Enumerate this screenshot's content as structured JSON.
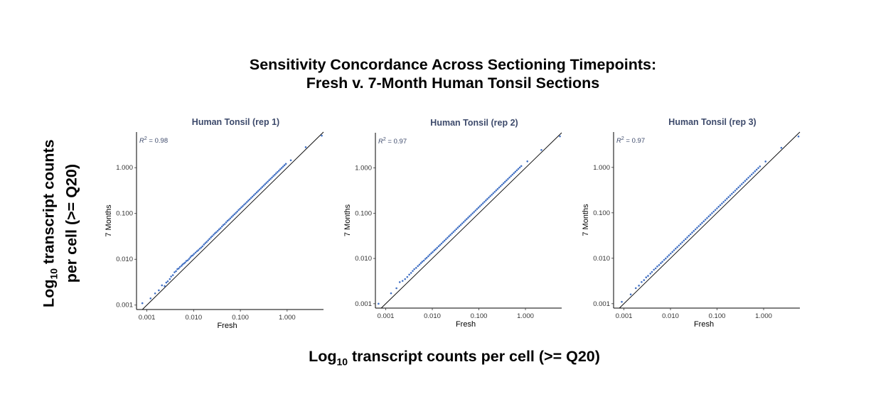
{
  "title_line1": "Sensitivity Concordance Across Sectioning Timepoints:",
  "title_line2": "Fresh v. 7-Month Human Tonsil Sections",
  "y_title_main": "Log",
  "y_title_sub": "10",
  "y_title_rest": " transcript counts",
  "y_title_line2": "per cell (>= Q20)",
  "x_title_main": "Log",
  "x_title_sub": "10",
  "x_title_rest": " transcript counts per cell (>= Q20)",
  "colors": {
    "points": "#4472C4",
    "reference_line": "#000000",
    "panel_title": "#3d4a6b"
  },
  "chart_data": [
    {
      "type": "scatter",
      "title": "Human Tonsil (rep 1)",
      "xlabel": "Fresh",
      "ylabel": "7 Months",
      "scale": "log10",
      "xlim": [
        0.0006,
        6.0
      ],
      "ylim": [
        0.0008,
        6.0
      ],
      "xticks": [
        "0.001",
        "0.010",
        "0.100",
        "1.000"
      ],
      "yticks": [
        "0.001",
        "0.010",
        "0.100",
        "1.000"
      ],
      "annotation": {
        "label": "R",
        "superscript": "2",
        "value": " = 0.98"
      },
      "reference_line": "y = x",
      "grid": false,
      "points": [
        [
          0.0008,
          0.0011
        ],
        [
          0.0012,
          0.0014
        ],
        [
          0.0015,
          0.0018
        ],
        [
          0.0018,
          0.0021
        ],
        [
          0.0021,
          0.0027
        ],
        [
          0.0024,
          0.0026
        ],
        [
          0.0026,
          0.0031
        ],
        [
          0.0028,
          0.0033
        ],
        [
          0.0031,
          0.0037
        ],
        [
          0.0033,
          0.0042
        ],
        [
          0.0036,
          0.0045
        ],
        [
          0.0039,
          0.0052
        ],
        [
          0.0042,
          0.0055
        ],
        [
          0.0045,
          0.0061
        ],
        [
          0.0048,
          0.0063
        ],
        [
          0.0051,
          0.0068
        ],
        [
          0.0055,
          0.0072
        ],
        [
          0.0058,
          0.0077
        ],
        [
          0.0062,
          0.0081
        ],
        [
          0.0066,
          0.0085
        ],
        [
          0.007,
          0.0092
        ],
        [
          0.0075,
          0.0095
        ],
        [
          0.008,
          0.0102
        ],
        [
          0.0085,
          0.011
        ],
        [
          0.009,
          0.0118
        ],
        [
          0.0096,
          0.0122
        ],
        [
          0.0102,
          0.0131
        ],
        [
          0.011,
          0.014
        ],
        [
          0.0118,
          0.015
        ],
        [
          0.0126,
          0.0158
        ],
        [
          0.0135,
          0.017
        ],
        [
          0.0145,
          0.018
        ],
        [
          0.0155,
          0.0192
        ],
        [
          0.0166,
          0.021
        ],
        [
          0.0178,
          0.0225
        ],
        [
          0.019,
          0.024
        ],
        [
          0.0204,
          0.0258
        ],
        [
          0.0218,
          0.0278
        ],
        [
          0.0234,
          0.03
        ],
        [
          0.025,
          0.032
        ],
        [
          0.0268,
          0.0345
        ],
        [
          0.0287,
          0.037
        ],
        [
          0.0307,
          0.0392
        ],
        [
          0.0329,
          0.042
        ],
        [
          0.0352,
          0.045
        ],
        [
          0.0377,
          0.048
        ],
        [
          0.0404,
          0.052
        ],
        [
          0.0432,
          0.056
        ],
        [
          0.0463,
          0.059
        ],
        [
          0.0496,
          0.064
        ],
        [
          0.0531,
          0.069
        ],
        [
          0.0568,
          0.073
        ],
        [
          0.0608,
          0.078
        ],
        [
          0.0651,
          0.084
        ],
        [
          0.0697,
          0.09
        ],
        [
          0.0747,
          0.096
        ],
        [
          0.08,
          0.103
        ],
        [
          0.0856,
          0.11
        ],
        [
          0.0917,
          0.119
        ],
        [
          0.0982,
          0.127
        ],
        [
          0.1051,
          0.136
        ],
        [
          0.1126,
          0.145
        ],
        [
          0.1206,
          0.156
        ],
        [
          0.1291,
          0.166
        ],
        [
          0.1383,
          0.178
        ],
        [
          0.1481,
          0.191
        ],
        [
          0.1586,
          0.204
        ],
        [
          0.1698,
          0.219
        ],
        [
          0.1818,
          0.234
        ],
        [
          0.1947,
          0.251
        ],
        [
          0.2085,
          0.269
        ],
        [
          0.2233,
          0.288
        ],
        [
          0.2391,
          0.308
        ],
        [
          0.256,
          0.33
        ],
        [
          0.2742,
          0.353
        ],
        [
          0.2936,
          0.378
        ],
        [
          0.3144,
          0.405
        ],
        [
          0.3367,
          0.434
        ],
        [
          0.3606,
          0.465
        ],
        [
          0.3861,
          0.498
        ],
        [
          0.4135,
          0.533
        ],
        [
          0.4428,
          0.571
        ],
        [
          0.4742,
          0.611
        ],
        [
          0.5078,
          0.655
        ],
        [
          0.5438,
          0.701
        ],
        [
          0.5823,
          0.751
        ],
        [
          0.6236,
          0.804
        ],
        [
          0.6678,
          0.861
        ],
        [
          0.7152,
          0.922
        ],
        [
          0.7659,
          0.988
        ],
        [
          0.8202,
          1.058
        ],
        [
          0.8783,
          1.133
        ],
        [
          0.9406,
          1.213
        ],
        [
          1.2,
          1.45
        ],
        [
          2.5,
          2.8
        ],
        [
          5.5,
          5.0
        ]
      ]
    },
    {
      "type": "scatter",
      "title": "Human Tonsil (rep 2)",
      "xlabel": "Fresh",
      "ylabel": "7 Months",
      "scale": "log10",
      "xlim": [
        0.0006,
        6.0
      ],
      "ylim": [
        0.0008,
        6.0
      ],
      "xticks": [
        "0.001",
        "0.010",
        "0.100",
        "1.000"
      ],
      "yticks": [
        "0.001",
        "0.010",
        "0.100",
        "1.000"
      ],
      "annotation": {
        "label": "R",
        "superscript": "2",
        "value": " = 0.97"
      },
      "reference_line": "y = x",
      "grid": false,
      "points": [
        [
          0.0007,
          0.001
        ],
        [
          0.0013,
          0.0017
        ],
        [
          0.0017,
          0.0022
        ],
        [
          0.002,
          0.003
        ],
        [
          0.0023,
          0.0032
        ],
        [
          0.0026,
          0.0035
        ],
        [
          0.0029,
          0.0039
        ],
        [
          0.0032,
          0.0044
        ],
        [
          0.0035,
          0.0048
        ],
        [
          0.0038,
          0.0053
        ],
        [
          0.0041,
          0.0058
        ],
        [
          0.0045,
          0.0062
        ],
        [
          0.0049,
          0.0068
        ],
        [
          0.0053,
          0.0073
        ],
        [
          0.0057,
          0.0079
        ],
        [
          0.0061,
          0.0085
        ],
        [
          0.0066,
          0.009
        ],
        [
          0.0071,
          0.0098
        ],
        [
          0.0076,
          0.0104
        ],
        [
          0.0082,
          0.0112
        ],
        [
          0.0088,
          0.0121
        ],
        [
          0.0095,
          0.013
        ],
        [
          0.0102,
          0.0139
        ],
        [
          0.011,
          0.015
        ],
        [
          0.0118,
          0.016
        ],
        [
          0.0127,
          0.0172
        ],
        [
          0.0137,
          0.0186
        ],
        [
          0.0147,
          0.0199
        ],
        [
          0.0158,
          0.0214
        ],
        [
          0.017,
          0.0231
        ],
        [
          0.0183,
          0.0248
        ],
        [
          0.0197,
          0.0267
        ],
        [
          0.0212,
          0.0287
        ],
        [
          0.0228,
          0.0309
        ],
        [
          0.0245,
          0.0332
        ],
        [
          0.0264,
          0.0358
        ],
        [
          0.0284,
          0.0385
        ],
        [
          0.0305,
          0.0414
        ],
        [
          0.0328,
          0.0445
        ],
        [
          0.0353,
          0.0479
        ],
        [
          0.038,
          0.0515
        ],
        [
          0.0409,
          0.0554
        ],
        [
          0.044,
          0.0596
        ],
        [
          0.0473,
          0.0641
        ],
        [
          0.0509,
          0.069
        ],
        [
          0.0547,
          0.0742
        ],
        [
          0.0589,
          0.0798
        ],
        [
          0.0633,
          0.0858
        ],
        [
          0.0681,
          0.0923
        ],
        [
          0.0733,
          0.0993
        ],
        [
          0.0788,
          0.1068
        ],
        [
          0.0848,
          0.1149
        ],
        [
          0.0912,
          0.1236
        ],
        [
          0.0981,
          0.133
        ],
        [
          0.1055,
          0.143
        ],
        [
          0.1135,
          0.1538
        ],
        [
          0.1221,
          0.1655
        ],
        [
          0.1313,
          0.178
        ],
        [
          0.1413,
          0.1915
        ],
        [
          0.152,
          0.206
        ],
        [
          0.1635,
          0.2216
        ],
        [
          0.1759,
          0.2384
        ],
        [
          0.1892,
          0.2564
        ],
        [
          0.2035,
          0.2758
        ],
        [
          0.2189,
          0.2967
        ],
        [
          0.2355,
          0.3192
        ],
        [
          0.2533,
          0.3433
        ],
        [
          0.2725,
          0.3693
        ],
        [
          0.2931,
          0.3973
        ],
        [
          0.3153,
          0.4274
        ],
        [
          0.3392,
          0.4597
        ],
        [
          0.3649,
          0.4946
        ],
        [
          0.3925,
          0.532
        ],
        [
          0.4222,
          0.5723
        ],
        [
          0.4542,
          0.6156
        ],
        [
          0.4886,
          0.6622
        ],
        [
          0.5256,
          0.7124
        ],
        [
          0.5654,
          0.7663
        ],
        [
          0.6082,
          0.8243
        ],
        [
          0.6542,
          0.8867
        ],
        [
          0.7037,
          0.9538
        ],
        [
          0.757,
          1.026
        ],
        [
          0.8143,
          1.1037
        ],
        [
          1.1,
          1.4
        ],
        [
          2.2,
          2.5
        ],
        [
          5.5,
          5.0
        ]
      ]
    },
    {
      "type": "scatter",
      "title": "Human Tonsil (rep 3)",
      "xlabel": "Fresh",
      "ylabel": "7 Months",
      "scale": "log10",
      "xlim": [
        0.0006,
        6.0
      ],
      "ylim": [
        0.0008,
        6.0
      ],
      "xticks": [
        "0.001",
        "0.010",
        "0.100",
        "1.000"
      ],
      "yticks": [
        "0.001",
        "0.010",
        "0.100",
        "1.000"
      ],
      "annotation": {
        "label": "R",
        "superscript": "2",
        "value": " = 0.97"
      },
      "reference_line": "y = x",
      "grid": false,
      "points": [
        [
          0.0009,
          0.0011
        ],
        [
          0.0014,
          0.0016
        ],
        [
          0.0018,
          0.0022
        ],
        [
          0.0021,
          0.0025
        ],
        [
          0.0024,
          0.003
        ],
        [
          0.0027,
          0.0033
        ],
        [
          0.003,
          0.0038
        ],
        [
          0.0033,
          0.0041
        ],
        [
          0.0037,
          0.0046
        ],
        [
          0.004,
          0.005
        ],
        [
          0.0044,
          0.0056
        ],
        [
          0.0048,
          0.006
        ],
        [
          0.0052,
          0.0066
        ],
        [
          0.0057,
          0.0071
        ],
        [
          0.0062,
          0.0078
        ],
        [
          0.0067,
          0.0084
        ],
        [
          0.0073,
          0.0092
        ],
        [
          0.0079,
          0.0099
        ],
        [
          0.0086,
          0.0108
        ],
        [
          0.0093,
          0.0117
        ],
        [
          0.0101,
          0.0127
        ],
        [
          0.011,
          0.0138
        ],
        [
          0.0119,
          0.015
        ],
        [
          0.0129,
          0.0163
        ],
        [
          0.014,
          0.0176
        ],
        [
          0.0152,
          0.0191
        ],
        [
          0.0165,
          0.0208
        ],
        [
          0.0179,
          0.0225
        ],
        [
          0.0194,
          0.0245
        ],
        [
          0.0211,
          0.0265
        ],
        [
          0.0229,
          0.0288
        ],
        [
          0.0248,
          0.0313
        ],
        [
          0.0269,
          0.0339
        ],
        [
          0.0292,
          0.0368
        ],
        [
          0.0317,
          0.0399
        ],
        [
          0.0344,
          0.0433
        ],
        [
          0.0373,
          0.047
        ],
        [
          0.0405,
          0.051
        ],
        [
          0.044,
          0.0554
        ],
        [
          0.0477,
          0.0601
        ],
        [
          0.0518,
          0.0652
        ],
        [
          0.0562,
          0.0708
        ],
        [
          0.061,
          0.0768
        ],
        [
          0.0662,
          0.0834
        ],
        [
          0.0718,
          0.0905
        ],
        [
          0.0779,
          0.0982
        ],
        [
          0.0846,
          0.1066
        ],
        [
          0.0918,
          0.1157
        ],
        [
          0.0996,
          0.1255
        ],
        [
          0.1081,
          0.1362
        ],
        [
          0.1173,
          0.1478
        ],
        [
          0.1273,
          0.1604
        ],
        [
          0.1381,
          0.1741
        ],
        [
          0.1499,
          0.1889
        ],
        [
          0.1627,
          0.205
        ],
        [
          0.1765,
          0.2225
        ],
        [
          0.1916,
          0.2414
        ],
        [
          0.2079,
          0.262
        ],
        [
          0.2256,
          0.2843
        ],
        [
          0.2448,
          0.3085
        ],
        [
          0.2657,
          0.3348
        ],
        [
          0.2883,
          0.3633
        ],
        [
          0.3129,
          0.3943
        ],
        [
          0.3395,
          0.4279
        ],
        [
          0.3684,
          0.4643
        ],
        [
          0.3998,
          0.5039
        ],
        [
          0.4339,
          0.5468
        ],
        [
          0.4708,
          0.5934
        ],
        [
          0.5109,
          0.6439
        ],
        [
          0.5545,
          0.6987
        ],
        [
          0.6017,
          0.7582
        ],
        [
          0.6529,
          0.8228
        ],
        [
          0.7085,
          0.8929
        ],
        [
          0.7689,
          0.969
        ],
        [
          0.8344,
          1.0515
        ],
        [
          1.1,
          1.35
        ],
        [
          2.4,
          2.7
        ],
        [
          5.6,
          4.8
        ]
      ]
    }
  ]
}
